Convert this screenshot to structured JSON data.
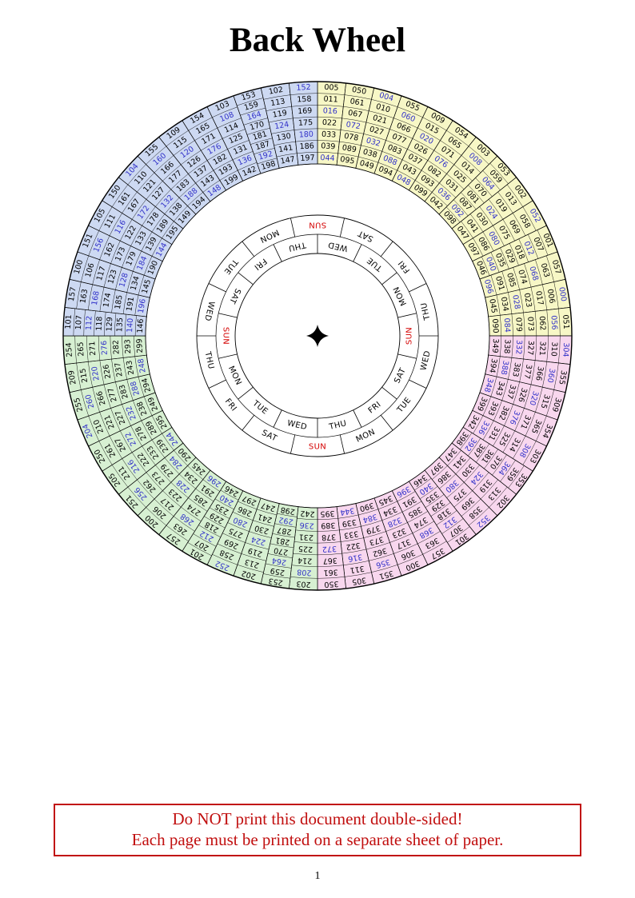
{
  "title": "Back Wheel",
  "warning": {
    "line1": "Do NOT print this document double-sided!",
    "line2": "Each page must be printed on a separate sheet of paper."
  },
  "page_number": "1",
  "colors": {
    "leap_year_text": "#3131c8",
    "regular_text": "#000000",
    "sun_red": "#d40000",
    "warning_red": "#c10f0f",
    "line_black": "#000000"
  },
  "wheel": {
    "non_leap_centuries": [
      100,
      200,
      300
    ],
    "quadrants": [
      {
        "name": "quadrant-years-000-099",
        "color": "#f7f7c6",
        "start_deg": 0,
        "sectors": [
          [
            5,
            11,
            16,
            22,
            33,
            39,
            44
          ],
          [
            50,
            61,
            67,
            72,
            78,
            89,
            95
          ],
          [
            4,
            10,
            21,
            27,
            32,
            38,
            49
          ],
          [
            55,
            60,
            66,
            77,
            83,
            88,
            94
          ],
          [
            9,
            15,
            20,
            26,
            37,
            43,
            48
          ],
          [
            54,
            65,
            71,
            76,
            82,
            93,
            99
          ],
          [
            3,
            8,
            14,
            25,
            31,
            36,
            42
          ],
          [
            53,
            59,
            64,
            70,
            81,
            87,
            92,
            98
          ],
          [
            2,
            13,
            19,
            24,
            30,
            41,
            47
          ],
          [
            52,
            58,
            69,
            75,
            80,
            86,
            97
          ],
          [
            1,
            7,
            12,
            18,
            29,
            35,
            40,
            46
          ],
          [
            57,
            63,
            68,
            74,
            85,
            91,
            96
          ],
          [
            0,
            6,
            17,
            23,
            28,
            34,
            45
          ],
          [
            51,
            56,
            62,
            73,
            79,
            84,
            90
          ]
        ]
      },
      {
        "name": "quadrant-years-300-399",
        "color": "#f8d7ee",
        "start_deg": 90,
        "sectors": [
          [
            304,
            310,
            321,
            327,
            332,
            338,
            349
          ],
          [
            355,
            360,
            366,
            377,
            383,
            388,
            394
          ],
          [
            309,
            315,
            320,
            326,
            337,
            343,
            348
          ],
          [
            354,
            365,
            371,
            376,
            382,
            393,
            399
          ],
          [
            303,
            308,
            314,
            325,
            331,
            336,
            342
          ],
          [
            353,
            359,
            364,
            370,
            381,
            387,
            392,
            398
          ],
          [
            302,
            313,
            319,
            324,
            330,
            341,
            347
          ],
          [
            352,
            358,
            369,
            375,
            380,
            386,
            397
          ],
          [
            301,
            307,
            312,
            318,
            329,
            335,
            340,
            346
          ],
          [
            357,
            363,
            368,
            374,
            385,
            391,
            396
          ],
          [
            300,
            306,
            317,
            323,
            328,
            334,
            345
          ],
          [
            351,
            356,
            362,
            373,
            379,
            384,
            390
          ],
          [
            305,
            311,
            316,
            322,
            333,
            339,
            344
          ],
          [
            350,
            361,
            367,
            372,
            378,
            389,
            395
          ]
        ]
      },
      {
        "name": "quadrant-years-200-299",
        "color": "#d7f0d2",
        "start_deg": 180,
        "sectors": [
          [
            203,
            208,
            214,
            225,
            231,
            236,
            242
          ],
          [
            253,
            259,
            264,
            270,
            281,
            287,
            292,
            298
          ],
          [
            202,
            213,
            219,
            224,
            230,
            241,
            247
          ],
          [
            252,
            258,
            269,
            275,
            280,
            286,
            297
          ],
          [
            201,
            207,
            212,
            218,
            229,
            235,
            240,
            246
          ],
          [
            257,
            263,
            268,
            274,
            285,
            291,
            296
          ],
          [
            200,
            206,
            217,
            223,
            228,
            234,
            245
          ],
          [
            251,
            256,
            262,
            273,
            279,
            284,
            290
          ],
          [
            205,
            211,
            216,
            222,
            233,
            239,
            244
          ],
          [
            250,
            261,
            267,
            272,
            278,
            289,
            295
          ],
          [
            204,
            210,
            221,
            227,
            232,
            238,
            249
          ],
          [
            255,
            260,
            266,
            277,
            283,
            288,
            294
          ],
          [
            209,
            215,
            220,
            226,
            237,
            243,
            248
          ],
          [
            254,
            265,
            271,
            276,
            282,
            293,
            299
          ]
        ]
      },
      {
        "name": "quadrant-years-100-199",
        "color": "#cdd9f2",
        "start_deg": 270,
        "sectors": [
          [
            101,
            107,
            112,
            118,
            129,
            135,
            140,
            146
          ],
          [
            157,
            163,
            168,
            174,
            185,
            191,
            196
          ],
          [
            100,
            106,
            117,
            123,
            128,
            134,
            145
          ],
          [
            151,
            156,
            162,
            173,
            179,
            184,
            190
          ],
          [
            105,
            111,
            116,
            122,
            133,
            139,
            144
          ],
          [
            150,
            161,
            167,
            172,
            178,
            189,
            195
          ],
          [
            104,
            110,
            121,
            127,
            132,
            138,
            149
          ],
          [
            155,
            160,
            166,
            177,
            183,
            188,
            194
          ],
          [
            109,
            115,
            120,
            126,
            137,
            143,
            148
          ],
          [
            154,
            165,
            171,
            176,
            182,
            193,
            199
          ],
          [
            103,
            108,
            114,
            125,
            131,
            136,
            142
          ],
          [
            153,
            159,
            164,
            170,
            181,
            187,
            192,
            198
          ],
          [
            102,
            113,
            119,
            124,
            130,
            141,
            147
          ],
          [
            152,
            158,
            169,
            175,
            180,
            186,
            197
          ]
        ]
      }
    ],
    "day_rings": {
      "outer": {
        "start_deg": 0,
        "labels_clockwise": [
          "SUN",
          "SAT",
          "FRI",
          "THU",
          "WED",
          "TUE",
          "MON",
          "SUN",
          "SAT",
          "FRI",
          "THU",
          "WED",
          "TUE",
          "MON"
        ]
      },
      "inner": {
        "start_deg": 270,
        "labels_clockwise": [
          "SUN",
          "SAT",
          "FRI",
          "THU",
          "WED",
          "TUE",
          "MON",
          "SUN",
          "SAT",
          "FRI",
          "THU",
          "WED",
          "TUE",
          "MON"
        ]
      }
    }
  }
}
